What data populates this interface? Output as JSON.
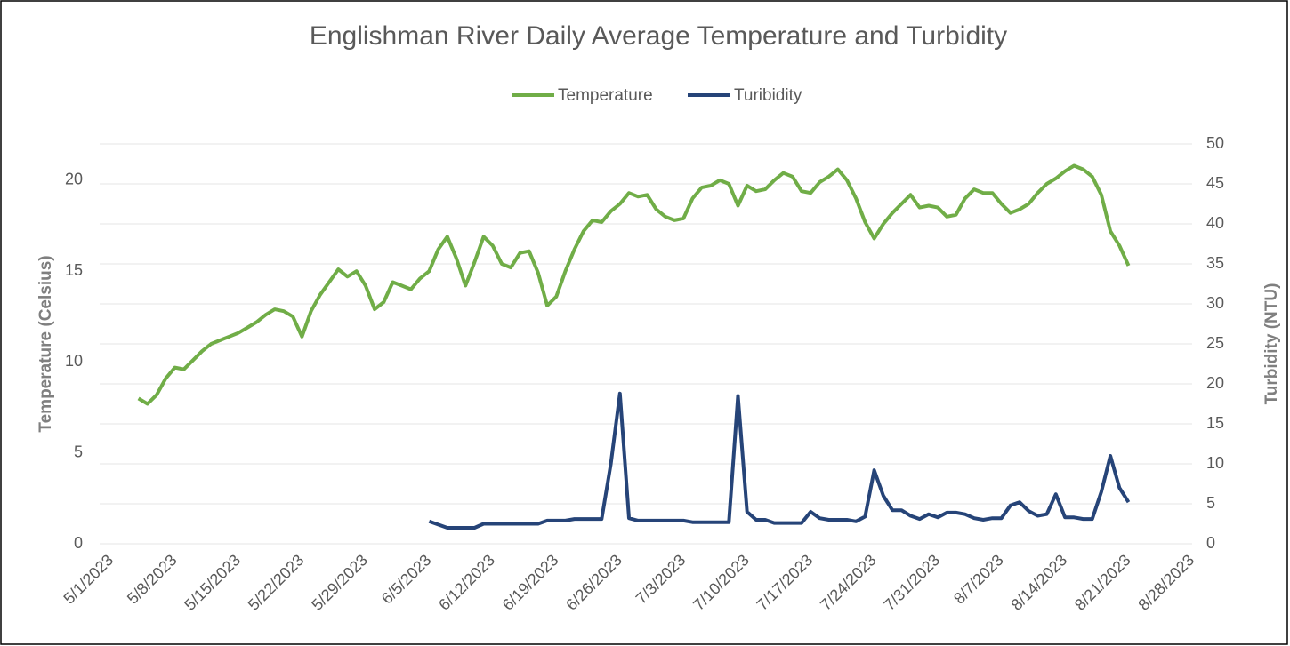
{
  "chart_data": {
    "type": "line",
    "title": "Englishman River Daily Average Temperature and Turbidity",
    "y_label": "Temperature (Celsius)",
    "y2_label": "Turbidity (NTU)",
    "legend": "top",
    "grid": true,
    "x": [
      "5/4/2023",
      "5/5/2023",
      "5/6/2023",
      "5/7/2023",
      "5/8/2023",
      "5/9/2023",
      "5/10/2023",
      "5/11/2023",
      "5/12/2023",
      "5/13/2023",
      "5/14/2023",
      "5/15/2023",
      "5/16/2023",
      "5/17/2023",
      "5/18/2023",
      "5/19/2023",
      "5/20/2023",
      "5/21/2023",
      "5/22/2023",
      "5/23/2023",
      "5/24/2023",
      "5/25/2023",
      "5/26/2023",
      "5/27/2023",
      "5/28/2023",
      "5/29/2023",
      "5/30/2023",
      "5/31/2023",
      "6/1/2023",
      "6/2/2023",
      "6/3/2023",
      "6/4/2023",
      "6/5/2023",
      "6/6/2023",
      "6/7/2023",
      "6/8/2023",
      "6/9/2023",
      "6/10/2023",
      "6/11/2023",
      "6/12/2023",
      "6/13/2023",
      "6/14/2023",
      "6/15/2023",
      "6/16/2023",
      "6/17/2023",
      "6/18/2023",
      "6/19/2023",
      "6/20/2023",
      "6/21/2023",
      "6/22/2023",
      "6/23/2023",
      "6/24/2023",
      "6/25/2023",
      "6/26/2023",
      "6/27/2023",
      "6/28/2023",
      "6/29/2023",
      "6/30/2023",
      "7/1/2023",
      "7/2/2023",
      "7/3/2023",
      "7/4/2023",
      "7/5/2023",
      "7/6/2023",
      "7/7/2023",
      "7/8/2023",
      "7/9/2023",
      "7/10/2023",
      "7/11/2023",
      "7/12/2023",
      "7/13/2023",
      "7/14/2023",
      "7/15/2023",
      "7/16/2023",
      "7/17/2023",
      "7/18/2023",
      "7/19/2023",
      "7/20/2023",
      "7/21/2023",
      "7/22/2023",
      "7/23/2023",
      "7/24/2023",
      "7/25/2023",
      "7/26/2023",
      "7/27/2023",
      "7/28/2023",
      "7/29/2023",
      "7/30/2023",
      "7/31/2023",
      "8/1/2023",
      "8/2/2023",
      "8/3/2023",
      "8/4/2023",
      "8/5/2023",
      "8/6/2023",
      "8/7/2023",
      "8/8/2023",
      "8/9/2023",
      "8/10/2023",
      "8/11/2023",
      "8/12/2023",
      "8/13/2023",
      "8/14/2023",
      "8/15/2023",
      "8/16/2023",
      "8/17/2023",
      "8/18/2023",
      "8/19/2023",
      "8/20/2023",
      "8/21/2023"
    ],
    "series": [
      {
        "name": "Temperature",
        "color": "#70ad47",
        "axis": "y",
        "values": [
          8.0,
          7.7,
          8.2,
          9.1,
          9.7,
          9.6,
          10.1,
          10.6,
          11.0,
          11.2,
          11.4,
          11.6,
          11.9,
          12.2,
          12.6,
          12.9,
          12.8,
          12.5,
          11.4,
          12.8,
          13.7,
          14.4,
          15.1,
          14.7,
          15.0,
          14.2,
          12.9,
          13.3,
          14.4,
          14.2,
          14.0,
          14.6,
          15.0,
          16.2,
          16.9,
          15.7,
          14.2,
          15.5,
          16.9,
          16.4,
          15.4,
          15.2,
          16.0,
          16.1,
          14.9,
          13.1,
          13.6,
          15.0,
          16.2,
          17.2,
          17.8,
          17.7,
          18.3,
          18.7,
          19.3,
          19.1,
          19.2,
          18.4,
          18.0,
          17.8,
          17.9,
          19.0,
          19.6,
          19.7,
          20.0,
          19.8,
          18.6,
          19.7,
          19.4,
          19.5,
          20.0,
          20.4,
          20.2,
          19.4,
          19.3,
          19.9,
          20.2,
          20.6,
          20.0,
          19.0,
          17.7,
          16.8,
          17.6,
          18.2,
          18.7,
          19.2,
          18.5,
          18.6,
          18.5,
          18.0,
          18.1,
          19.0,
          19.5,
          19.3,
          19.3,
          18.7,
          18.2,
          18.4,
          18.7,
          19.3,
          19.8,
          20.1,
          20.5,
          20.8,
          20.6,
          20.2,
          19.2,
          17.2,
          16.4,
          15.3
        ]
      },
      {
        "name": "Turibidity",
        "color": "#264478",
        "axis": "y2",
        "values": [
          null,
          null,
          null,
          null,
          null,
          null,
          null,
          null,
          null,
          null,
          null,
          null,
          null,
          null,
          null,
          null,
          null,
          null,
          null,
          null,
          null,
          null,
          null,
          null,
          null,
          null,
          null,
          null,
          null,
          null,
          null,
          null,
          2.8,
          2.4,
          2.0,
          2.0,
          2.0,
          2.0,
          2.5,
          2.5,
          2.5,
          2.5,
          2.5,
          2.5,
          2.5,
          2.9,
          2.9,
          2.9,
          3.1,
          3.1,
          3.1,
          3.1,
          10,
          18.8,
          3.2,
          2.9,
          2.9,
          2.9,
          2.9,
          2.9,
          2.9,
          2.7,
          2.7,
          2.7,
          2.7,
          2.7,
          18.5,
          4.0,
          3.0,
          3.0,
          2.6,
          2.6,
          2.6,
          2.6,
          4.0,
          3.2,
          3.0,
          3.0,
          3.0,
          2.8,
          3.4,
          9.2,
          6.0,
          4.2,
          4.2,
          3.5,
          3.1,
          3.7,
          3.3,
          3.9,
          3.9,
          3.7,
          3.2,
          3.0,
          3.2,
          3.2,
          4.8,
          5.2,
          4.1,
          3.5,
          3.7,
          6.2,
          3.3,
          3.3,
          3.1,
          3.1,
          6.5,
          11.0,
          7.0,
          5.2
        ]
      }
    ],
    "xlim": [
      "5/1/2023",
      "8/28/2023"
    ],
    "xticks": [
      "5/1/2023",
      "5/8/2023",
      "5/15/2023",
      "5/22/2023",
      "5/29/2023",
      "6/5/2023",
      "6/12/2023",
      "6/19/2023",
      "6/26/2023",
      "7/3/2023",
      "7/10/2023",
      "7/17/2023",
      "7/24/2023",
      "7/31/2023",
      "8/7/2023",
      "8/14/2023",
      "8/21/2023",
      "8/28/2023"
    ],
    "ylim": [
      0,
      22
    ],
    "yticks": [
      0,
      5,
      10,
      15,
      20
    ],
    "y2lim": [
      0,
      50
    ],
    "y2ticks": [
      0,
      5,
      10,
      15,
      20,
      25,
      30,
      35,
      40,
      45,
      50
    ]
  }
}
